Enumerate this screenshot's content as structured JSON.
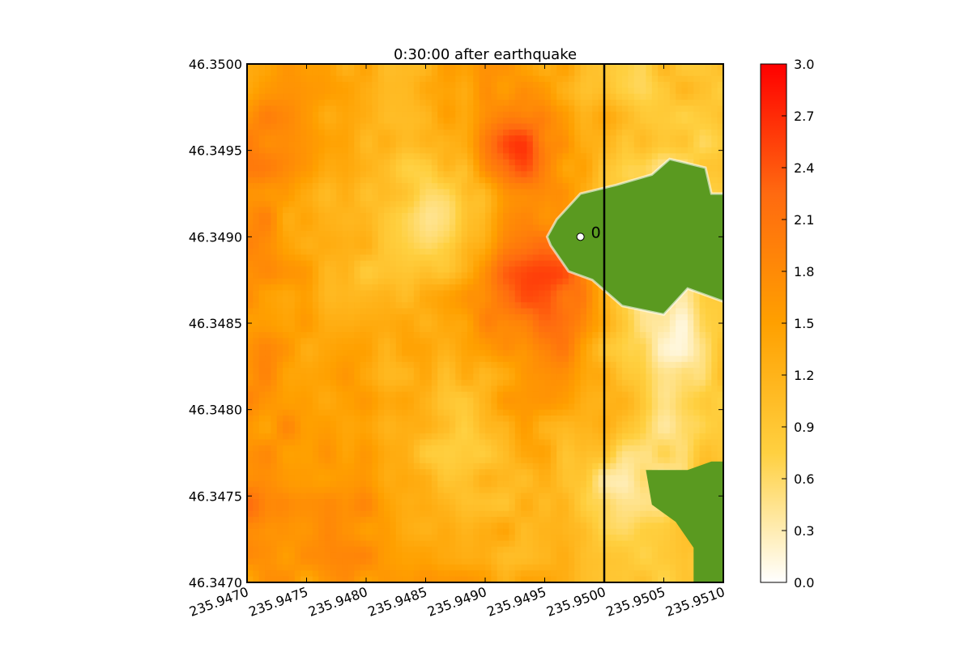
{
  "chart_data": {
    "type": "heatmap",
    "title": "0:30:00 after earthquake",
    "xlabel": "",
    "ylabel": "",
    "xlim": [
      235.947,
      235.951
    ],
    "ylim": [
      46.347,
      46.35
    ],
    "x_ticks": [
      235.947,
      235.9475,
      235.948,
      235.9485,
      235.949,
      235.9495,
      235.95,
      235.9505,
      235.951
    ],
    "x_tick_labels": [
      "235.9470",
      "235.9475",
      "235.9480",
      "235.9485",
      "235.9490",
      "235.9495",
      "235.9500",
      "235.9505",
      "235.9510"
    ],
    "y_ticks": [
      46.347,
      46.3475,
      46.348,
      46.3485,
      46.349,
      46.3495,
      46.35
    ],
    "y_tick_labels": [
      "46.3470",
      "46.3475",
      "46.3480",
      "46.3485",
      "46.3490",
      "46.3495",
      "46.3500"
    ],
    "colorbar": {
      "min": 0.0,
      "max": 3.0,
      "ticks": [
        0.0,
        0.3,
        0.6,
        0.9,
        1.2,
        1.5,
        1.8,
        2.1,
        2.4,
        2.7,
        3.0
      ],
      "tick_labels": [
        "0.0",
        "0.3",
        "0.6",
        "0.9",
        "1.2",
        "1.5",
        "1.8",
        "2.1",
        "2.4",
        "2.7",
        "3.0"
      ],
      "colors": [
        "#ffffff",
        "#ffd040",
        "#ffa000",
        "#ff6a10",
        "#ff0000"
      ]
    },
    "land_color": "#5a9a20",
    "transect_x": 235.95,
    "gauge": {
      "x": 235.9498,
      "y": 46.349,
      "label": "0"
    },
    "grid": false
  }
}
